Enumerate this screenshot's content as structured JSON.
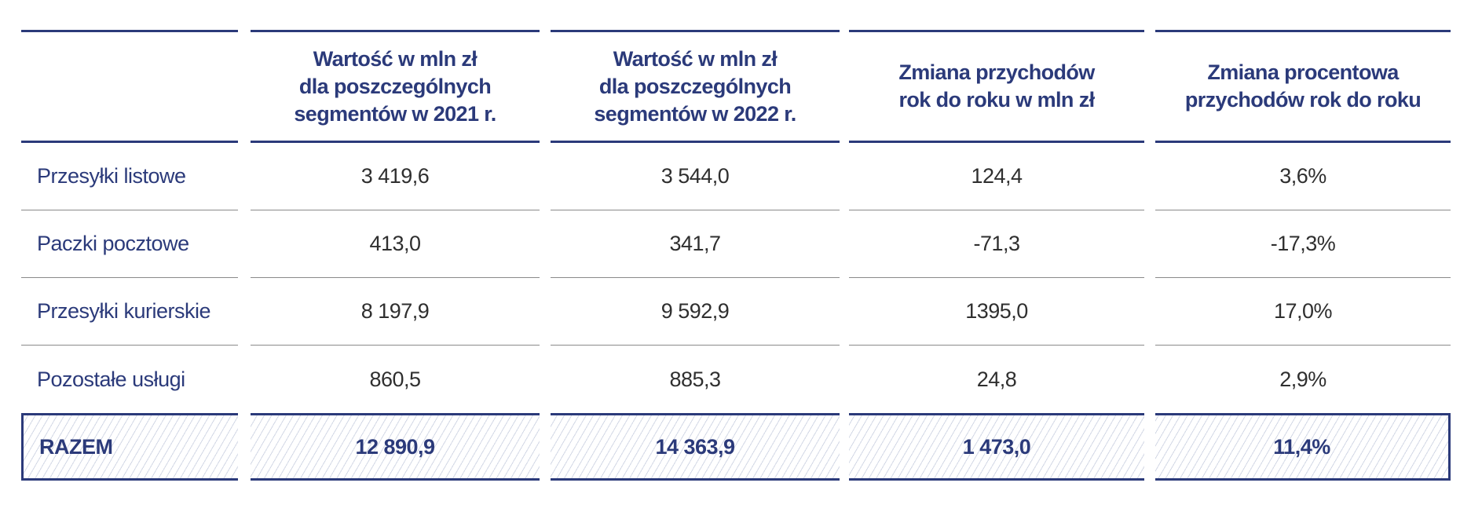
{
  "columns": [
    {
      "header": ""
    },
    {
      "header": "Wartość w mln zł\ndla poszczególnych\nsegmentów w 2021 r."
    },
    {
      "header": "Wartość w mln zł\ndla poszczególnych\nsegmentów w 2022 r."
    },
    {
      "header": "Zmiana przychodów\nrok do roku w mln zł"
    },
    {
      "header": "Zmiana procentowa\nprzychodów rok do roku"
    }
  ],
  "rows": [
    {
      "label": "Przesyłki listowe",
      "v2021": "3 419,6",
      "v2022": "3 544,0",
      "change": "124,4",
      "change_pct": "3,6%"
    },
    {
      "label": "Paczki pocztowe",
      "v2021": "413,0",
      "v2022": "341,7",
      "change": "-71,3",
      "change_pct": "-17,3%"
    },
    {
      "label": "Przesyłki kurierskie",
      "v2021": "8 197,9",
      "v2022": "9 592,9",
      "change": "1395,0",
      "change_pct": "17,0%"
    },
    {
      "label": "Pozostałe usługi",
      "v2021": "860,5",
      "v2022": "885,3",
      "change": "24,8",
      "change_pct": "2,9%"
    }
  ],
  "total": {
    "label": "RAZEM",
    "v2021": "12 890,9",
    "v2022": "14 363,9",
    "change": "1 473,0",
    "change_pct": "11,4%"
  },
  "colors": {
    "accent": "#2b3a7a",
    "text": "#2f2f2f",
    "rule": "#8a8a8a",
    "hatch": "#d3d8e6"
  }
}
